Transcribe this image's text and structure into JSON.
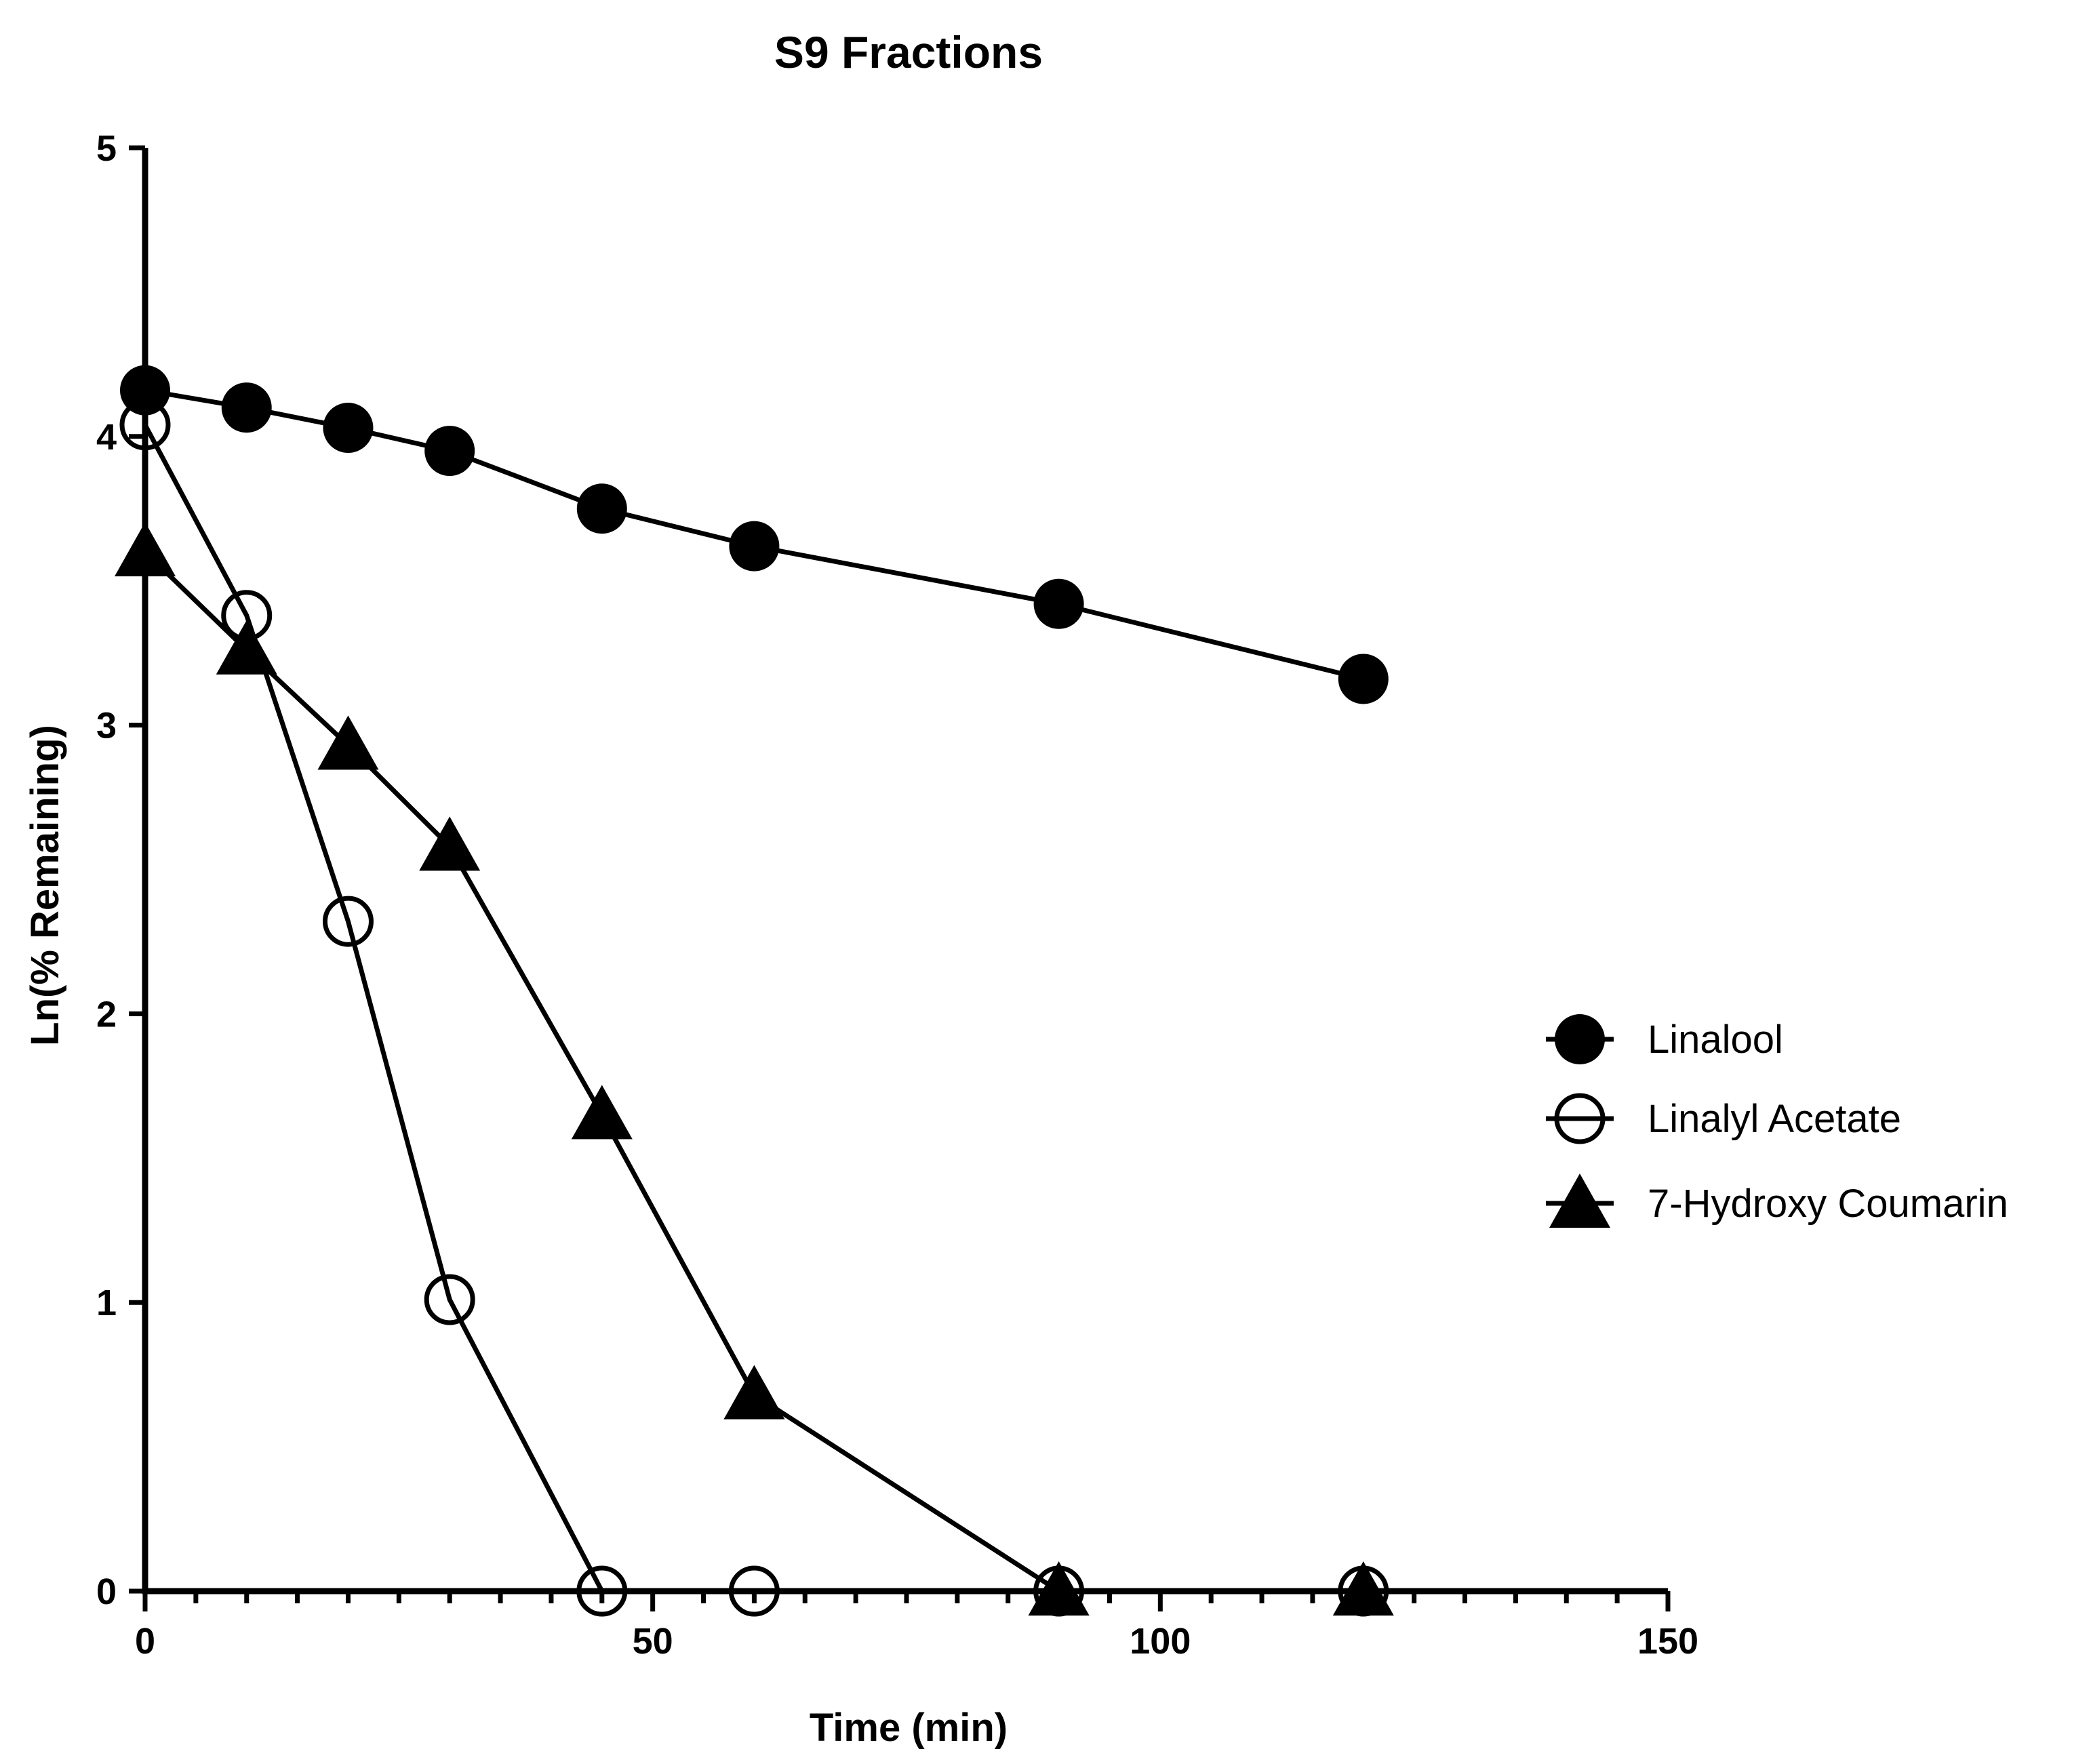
{
  "chart_data": {
    "type": "line",
    "title": "S9 Fractions",
    "xlabel": "Time (min)",
    "ylabel": "Ln(% Remaining)",
    "xlim": [
      0,
      150
    ],
    "ylim": [
      0,
      5
    ],
    "x_ticks": [
      "0",
      "50",
      "100",
      "150"
    ],
    "y_ticks": [
      "0",
      "1",
      "2",
      "3",
      "4",
      "5"
    ],
    "grid": false,
    "legend_position": "right",
    "series": [
      {
        "name": "Linalool",
        "marker": "filled-circle",
        "x": [
          0,
          10,
          20,
          30,
          45,
          60,
          90,
          120
        ],
        "values": [
          4.16,
          4.1,
          4.03,
          3.95,
          3.75,
          3.62,
          3.42,
          3.16
        ]
      },
      {
        "name": "Linalyl Acetate",
        "marker": "open-circle",
        "x": [
          0,
          10,
          20,
          30,
          45,
          60,
          90,
          120
        ],
        "values": [
          4.04,
          3.38,
          2.32,
          1.01,
          0,
          0,
          0,
          0
        ]
      },
      {
        "name": "7-Hydroxy Coumarin",
        "marker": "filled-triangle",
        "x": [
          0,
          10,
          20,
          30,
          45,
          60,
          90,
          120
        ],
        "values": [
          3.6,
          3.26,
          2.93,
          2.58,
          1.65,
          0.68,
          0,
          0
        ]
      }
    ],
    "colors": {
      "line": "#000000",
      "marker": "#000000",
      "background": "#ffffff"
    }
  }
}
